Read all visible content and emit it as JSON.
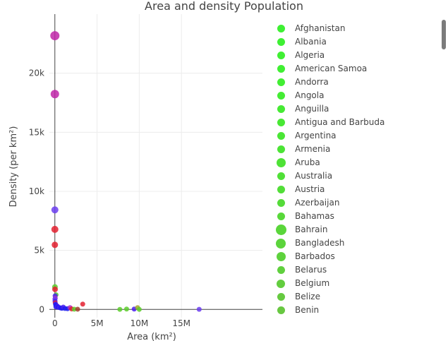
{
  "chart_data": {
    "type": "scatter",
    "title": "Area and density Population",
    "xlabel": "Area (km²)",
    "ylabel": "Density (per km²)",
    "xlim": [
      -650000,
      24600000
    ],
    "ylim": [
      -700,
      25000
    ],
    "x_ticks": [
      0,
      5000000,
      10000000,
      15000000
    ],
    "x_tick_labels": [
      "0",
      "5M",
      "10M",
      "15M"
    ],
    "y_ticks": [
      0,
      5000,
      10000,
      15000,
      20000
    ],
    "y_tick_labels": [
      "0",
      "5k",
      "10k",
      "15k",
      "20k"
    ],
    "grid": true,
    "legend_position": "right",
    "points": [
      {
        "x": 2,
        "y": 23172,
        "color": "#c026a8",
        "size": 13
      },
      {
        "x": 700,
        "y": 18230,
        "color": "#c026a8",
        "size": 12
      },
      {
        "x": 1100,
        "y": 8430,
        "color": "#6b3df0",
        "size": 10
      },
      {
        "x": 30,
        "y": 6780,
        "color": "#e3202f",
        "size": 10
      },
      {
        "x": 30,
        "y": 5470,
        "color": "#e3202f",
        "size": 9
      },
      {
        "x": 10000,
        "y": 1900,
        "color": "#5ccd2b",
        "size": 8
      },
      {
        "x": 20000,
        "y": 1700,
        "color": "#e3202f",
        "size": 8
      },
      {
        "x": 140000,
        "y": 1240,
        "color": "#5ccd2b",
        "size": 7
      },
      {
        "x": 30000,
        "y": 1150,
        "color": "#4a1ff0",
        "size": 7
      },
      {
        "x": 50000,
        "y": 950,
        "color": "#b02cc4",
        "size": 7
      },
      {
        "x": 10000,
        "y": 880,
        "color": "#6b3df0",
        "size": 7
      },
      {
        "x": 20000,
        "y": 700,
        "color": "#4a1ff0",
        "size": 7
      },
      {
        "x": 40000,
        "y": 560,
        "color": "#e3202f",
        "size": 7
      },
      {
        "x": 80000,
        "y": 450,
        "color": "#4a1ff0",
        "size": 7
      },
      {
        "x": 100000,
        "y": 380,
        "color": "#1f1ff0",
        "size": 7
      },
      {
        "x": 200000,
        "y": 320,
        "color": "#1f1ff0",
        "size": 7
      },
      {
        "x": 300000,
        "y": 280,
        "color": "#4a1ff0",
        "size": 7
      },
      {
        "x": 120000,
        "y": 230,
        "color": "#1f1ff0",
        "size": 7
      },
      {
        "x": 250000,
        "y": 200,
        "color": "#4a1ff0",
        "size": 7
      },
      {
        "x": 400000,
        "y": 180,
        "color": "#1f1ff0",
        "size": 7
      },
      {
        "x": 550000,
        "y": 150,
        "color": "#4a1ff0",
        "size": 7
      },
      {
        "x": 700000,
        "y": 120,
        "color": "#1f1ff0",
        "size": 7
      },
      {
        "x": 850000,
        "y": 100,
        "color": "#1f1ff0",
        "size": 7
      },
      {
        "x": 1000000,
        "y": 200,
        "color": "#4a1ff0",
        "size": 7
      },
      {
        "x": 1200000,
        "y": 80,
        "color": "#1f1ff0",
        "size": 7
      },
      {
        "x": 1500000,
        "y": 60,
        "color": "#1f1ff0",
        "size": 7
      },
      {
        "x": 1800000,
        "y": 150,
        "color": "#b02cc4",
        "size": 7
      },
      {
        "x": 2000000,
        "y": 40,
        "color": "#e3202f",
        "size": 7
      },
      {
        "x": 2300000,
        "y": 20,
        "color": "#5ccd2b",
        "size": 7
      },
      {
        "x": 2700000,
        "y": 20,
        "color": "#a33d2b",
        "size": 7
      },
      {
        "x": 3300000,
        "y": 450,
        "color": "#e3202f",
        "size": 7
      },
      {
        "x": 7700000,
        "y": 5,
        "color": "#5ccd2b",
        "size": 7
      },
      {
        "x": 8500000,
        "y": 30,
        "color": "#5ccd2b",
        "size": 7
      },
      {
        "x": 9400000,
        "y": 30,
        "color": "#4a1ff0",
        "size": 7
      },
      {
        "x": 9800000,
        "y": 150,
        "color": "#a3a32b",
        "size": 7
      },
      {
        "x": 10000000,
        "y": 5,
        "color": "#5ccd2b",
        "size": 7
      },
      {
        "x": 17100000,
        "y": 10,
        "color": "#6b3df0",
        "size": 7
      }
    ],
    "legend": [
      {
        "name": "Afghanistan",
        "color": "#3ef033",
        "size": 11
      },
      {
        "name": "Albania",
        "color": "#3ef033",
        "size": 11
      },
      {
        "name": "Algeria",
        "color": "#40ef33",
        "size": 11
      },
      {
        "name": "American Samoa",
        "color": "#40ef33",
        "size": 11
      },
      {
        "name": "Andorra",
        "color": "#42ee33",
        "size": 11
      },
      {
        "name": "Angola",
        "color": "#44ec34",
        "size": 11
      },
      {
        "name": "Anguilla",
        "color": "#46ea34",
        "size": 11
      },
      {
        "name": "Antigua and Barbuda",
        "color": "#48e834",
        "size": 11
      },
      {
        "name": "Argentina",
        "color": "#4ae635",
        "size": 11
      },
      {
        "name": "Armenia",
        "color": "#4ce436",
        "size": 11
      },
      {
        "name": "Aruba",
        "color": "#4ee236",
        "size": 13
      },
      {
        "name": "Australia",
        "color": "#50e037",
        "size": 11
      },
      {
        "name": "Austria",
        "color": "#52de38",
        "size": 11
      },
      {
        "name": "Azerbaijan",
        "color": "#55db39",
        "size": 11
      },
      {
        "name": "Bahamas",
        "color": "#58d83a",
        "size": 11
      },
      {
        "name": "Bahrain",
        "color": "#5ad63b",
        "size": 15
      },
      {
        "name": "Bangladesh",
        "color": "#5cd43c",
        "size": 14
      },
      {
        "name": "Barbados",
        "color": "#5ed23d",
        "size": 13
      },
      {
        "name": "Belarus",
        "color": "#60d03e",
        "size": 11
      },
      {
        "name": "Belgium",
        "color": "#63cd3f",
        "size": 12
      },
      {
        "name": "Belize",
        "color": "#66ca40",
        "size": 11
      },
      {
        "name": "Benin",
        "color": "#68c841",
        "size": 11
      }
    ]
  }
}
